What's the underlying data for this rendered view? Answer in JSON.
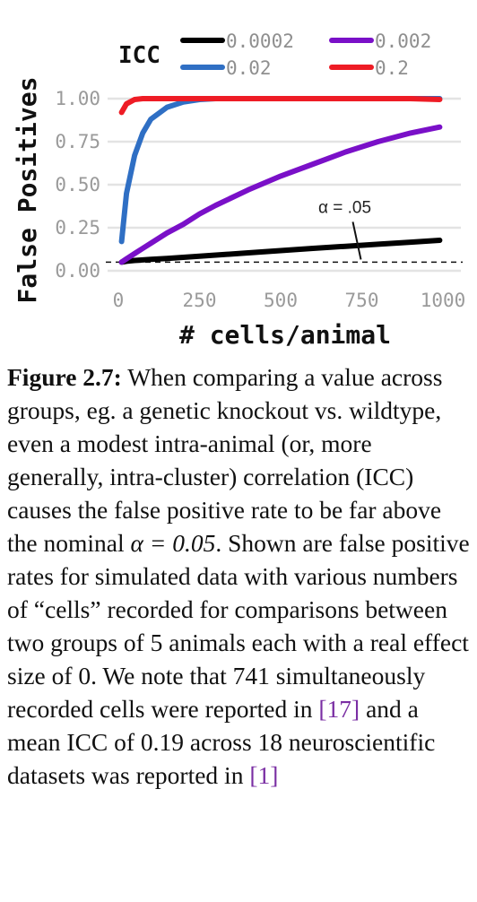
{
  "chart_data": {
    "type": "line",
    "xlabel": "# cells/animal",
    "ylabel": "False Positives",
    "xlim": [
      0,
      1000
    ],
    "ylim": [
      0,
      1
    ],
    "xticks": [
      "0",
      "250",
      "500",
      "750",
      "1000"
    ],
    "yticks": [
      "0.00",
      "0.25",
      "0.50",
      "0.75",
      "1.00"
    ],
    "grid": true,
    "legend_title": "ICC",
    "legend_placement": "top",
    "x": [
      10,
      25,
      50,
      75,
      100,
      150,
      200,
      250,
      300,
      400,
      500,
      600,
      700,
      800,
      900,
      990
    ],
    "series": [
      {
        "name": "0.0002",
        "color": "#000000",
        "values": [
          0.05,
          0.055,
          0.06,
          0.063,
          0.066,
          0.072,
          0.078,
          0.085,
          0.091,
          0.104,
          0.117,
          0.13,
          0.142,
          0.154,
          0.166,
          0.177
        ]
      },
      {
        "name": "0.002",
        "color": "#7a10c8",
        "values": [
          0.05,
          0.07,
          0.1,
          0.13,
          0.16,
          0.22,
          0.27,
          0.33,
          0.38,
          0.47,
          0.55,
          0.62,
          0.69,
          0.75,
          0.8,
          0.835
        ]
      },
      {
        "name": "0.02",
        "color": "#2f6fc4",
        "values": [
          0.17,
          0.45,
          0.67,
          0.8,
          0.88,
          0.95,
          0.98,
          0.995,
          1.0,
          1.0,
          1.0,
          1.0,
          1.0,
          1.0,
          1.0,
          1.0
        ]
      },
      {
        "name": "0.2",
        "color": "#ee1c25",
        "values": [
          0.92,
          0.97,
          0.995,
          1.0,
          1.0,
          1.0,
          1.0,
          1.0,
          1.0,
          1.0,
          1.0,
          1.0,
          1.0,
          1.0,
          1.0,
          0.995
        ]
      }
    ],
    "hline": {
      "y": 0.05,
      "style": "dashed"
    },
    "annotation": {
      "text": "α = .05",
      "x": 750,
      "y": 0.05
    }
  },
  "caption": {
    "label": "Figure 2.7:",
    "text_1": " When comparing a value across groups, eg. a genetic knockout vs. wildtype, even a modest intra-animal (or, more generally, intra-cluster) correlation (ICC) causes the false positive rate to be far above the nominal ",
    "alpha_expr": "α = 0.05",
    "text_2": ". Shown are false positive rates for simulated data with various numbers of “cells” recorded for comparisons between two groups of 5 animals each with a real effect size of 0. We note that 741 simultaneously recorded cells were reported in ",
    "ref_1": "[17]",
    "text_3": " and a mean ICC of 0.19 across 18 neuroscientific datasets was reported in ",
    "ref_2": "[1]"
  }
}
